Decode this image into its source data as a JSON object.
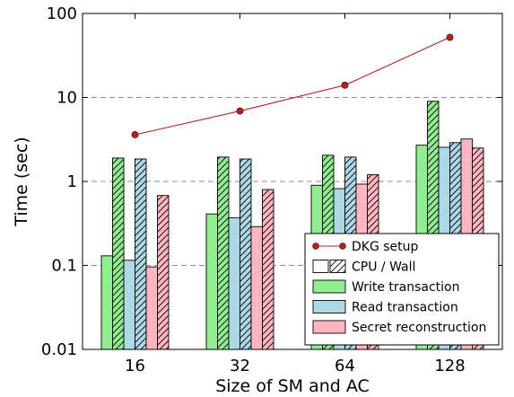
{
  "chart_data": {
    "type": "bar",
    "title": "",
    "xlabel": "Size of SM and AC",
    "ylabel": "Time (sec)",
    "yscale": "log",
    "ylim": [
      0.01,
      100
    ],
    "grid": "horizontal dashed",
    "legend_placement": "bottom-right",
    "categories": [
      "16",
      "32",
      "64",
      "128"
    ],
    "y_tick_labels": [
      "0.01",
      "0.1",
      "1",
      "10",
      "100"
    ],
    "y_tick_values": [
      0.01,
      0.1,
      1,
      10,
      100
    ],
    "line_series": {
      "name": "DKG setup",
      "values": [
        3.6,
        6.9,
        14,
        52
      ],
      "color": "#b22222"
    },
    "style_legend_label": "CPU / Wall",
    "series": [
      {
        "name": "Write transaction",
        "color": "#90ee90",
        "cpu": [
          0.13,
          0.41,
          0.9,
          2.7
        ],
        "wall": [
          1.9,
          1.95,
          2.05,
          9.0
        ]
      },
      {
        "name": "Read transaction",
        "color": "#add8e6",
        "cpu": [
          0.115,
          0.37,
          0.82,
          2.55
        ],
        "wall": [
          1.85,
          1.85,
          1.95,
          2.9
        ]
      },
      {
        "name": "Secret reconstruction",
        "color": "#ffb6c1",
        "cpu": [
          0.096,
          0.29,
          0.93,
          3.2
        ],
        "wall": [
          0.68,
          0.8,
          1.2,
          2.5
        ]
      }
    ]
  }
}
